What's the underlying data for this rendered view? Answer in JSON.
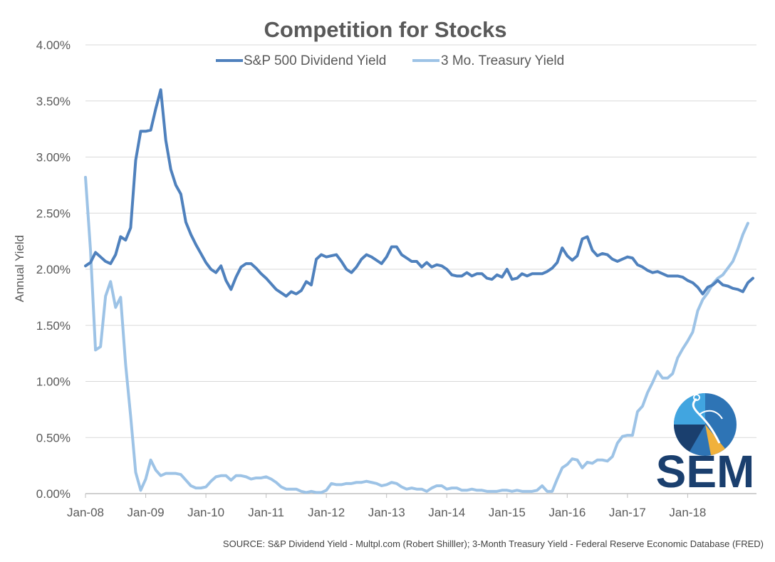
{
  "chart_data": {
    "type": "line",
    "title": "Competition for Stocks",
    "ylabel": "Annual Yield",
    "xlabel": "",
    "ylim": [
      0,
      4.0
    ],
    "y_ticks": [
      "0.00%",
      "0.50%",
      "1.00%",
      "1.50%",
      "2.00%",
      "2.50%",
      "3.00%",
      "3.50%",
      "4.00%"
    ],
    "x_ticks": [
      "Jan-08",
      "Jan-09",
      "Jan-10",
      "Jan-11",
      "Jan-12",
      "Jan-13",
      "Jan-14",
      "Jan-15",
      "Jan-16",
      "Jan-17",
      "Jan-18"
    ],
    "x_range": [
      "2008-01",
      "2018-12"
    ],
    "grid": "horizontal",
    "legend_position": "top",
    "series": [
      {
        "name": "S&P 500 Dividend Yield",
        "color": "#4f81bd",
        "values": [
          2.03,
          2.06,
          2.15,
          2.11,
          2.07,
          2.05,
          2.13,
          2.29,
          2.26,
          2.37,
          2.97,
          3.23,
          3.23,
          3.24,
          3.43,
          3.6,
          3.15,
          2.89,
          2.75,
          2.67,
          2.42,
          2.31,
          2.22,
          2.14,
          2.06,
          2.0,
          1.97,
          2.03,
          1.9,
          1.82,
          1.93,
          2.02,
          2.05,
          2.05,
          2.01,
          1.96,
          1.92,
          1.87,
          1.82,
          1.79,
          1.76,
          1.8,
          1.78,
          1.81,
          1.89,
          1.86,
          2.09,
          2.13,
          2.11,
          2.12,
          2.13,
          2.07,
          2.0,
          1.97,
          2.02,
          2.09,
          2.13,
          2.11,
          2.08,
          2.05,
          2.11,
          2.2,
          2.2,
          2.13,
          2.1,
          2.07,
          2.07,
          2.02,
          2.06,
          2.02,
          2.04,
          2.03,
          2.0,
          1.95,
          1.94,
          1.94,
          1.97,
          1.94,
          1.96,
          1.96,
          1.92,
          1.91,
          1.95,
          1.93,
          2.0,
          1.91,
          1.92,
          1.96,
          1.94,
          1.96,
          1.96,
          1.96,
          1.98,
          2.01,
          2.06,
          2.19,
          2.12,
          2.08,
          2.12,
          2.27,
          2.29,
          2.17,
          2.12,
          2.14,
          2.13,
          2.09,
          2.07,
          2.09,
          2.11,
          2.1,
          2.04,
          2.02,
          1.99,
          1.97,
          1.98,
          1.96,
          1.94,
          1.94,
          1.94,
          1.93,
          1.9,
          1.88,
          1.84,
          1.78,
          1.84,
          1.86,
          1.9,
          1.86,
          1.85,
          1.83,
          1.82,
          1.8,
          1.88,
          1.92
        ]
      },
      {
        "name": "3 Mo. Treasury Yield",
        "color": "#9dc3e6",
        "values": [
          2.82,
          2.17,
          1.28,
          1.31,
          1.76,
          1.89,
          1.66,
          1.75,
          1.15,
          0.69,
          0.19,
          0.03,
          0.13,
          0.3,
          0.21,
          0.16,
          0.18,
          0.18,
          0.18,
          0.17,
          0.12,
          0.07,
          0.05,
          0.05,
          0.06,
          0.11,
          0.15,
          0.16,
          0.16,
          0.12,
          0.16,
          0.16,
          0.15,
          0.13,
          0.14,
          0.14,
          0.15,
          0.13,
          0.1,
          0.06,
          0.04,
          0.04,
          0.04,
          0.02,
          0.01,
          0.02,
          0.01,
          0.01,
          0.03,
          0.09,
          0.08,
          0.08,
          0.09,
          0.09,
          0.1,
          0.1,
          0.11,
          0.1,
          0.09,
          0.07,
          0.08,
          0.1,
          0.09,
          0.06,
          0.04,
          0.05,
          0.04,
          0.04,
          0.02,
          0.05,
          0.07,
          0.07,
          0.04,
          0.05,
          0.05,
          0.03,
          0.03,
          0.04,
          0.03,
          0.03,
          0.02,
          0.02,
          0.02,
          0.03,
          0.03,
          0.02,
          0.03,
          0.02,
          0.02,
          0.02,
          0.03,
          0.07,
          0.02,
          0.02,
          0.13,
          0.23,
          0.26,
          0.31,
          0.3,
          0.23,
          0.28,
          0.27,
          0.3,
          0.3,
          0.29,
          0.33,
          0.45,
          0.51,
          0.52,
          0.52,
          0.73,
          0.78,
          0.9,
          0.99,
          1.09,
          1.03,
          1.03,
          1.07,
          1.21,
          1.29,
          1.36,
          1.44,
          1.63,
          1.73,
          1.79,
          1.87,
          1.92,
          1.95,
          2.01,
          2.07,
          2.18,
          2.31,
          2.41
        ]
      }
    ]
  },
  "source_note": "SOURCE: S&P Dividend Yield - Multpl.com (Robert Shilller); 3-Month Treasury Yield - Federal Reserve Economic Database (FRED)",
  "logo": {
    "text": "SEM",
    "colors": {
      "dark": "#1a3f6e",
      "mid": "#2e74b5",
      "light": "#41a5e0",
      "accent": "#f0b13c"
    }
  },
  "colors": {
    "grid": "#d9d9d9",
    "axis": "#bfbfbf",
    "text": "#595959"
  }
}
